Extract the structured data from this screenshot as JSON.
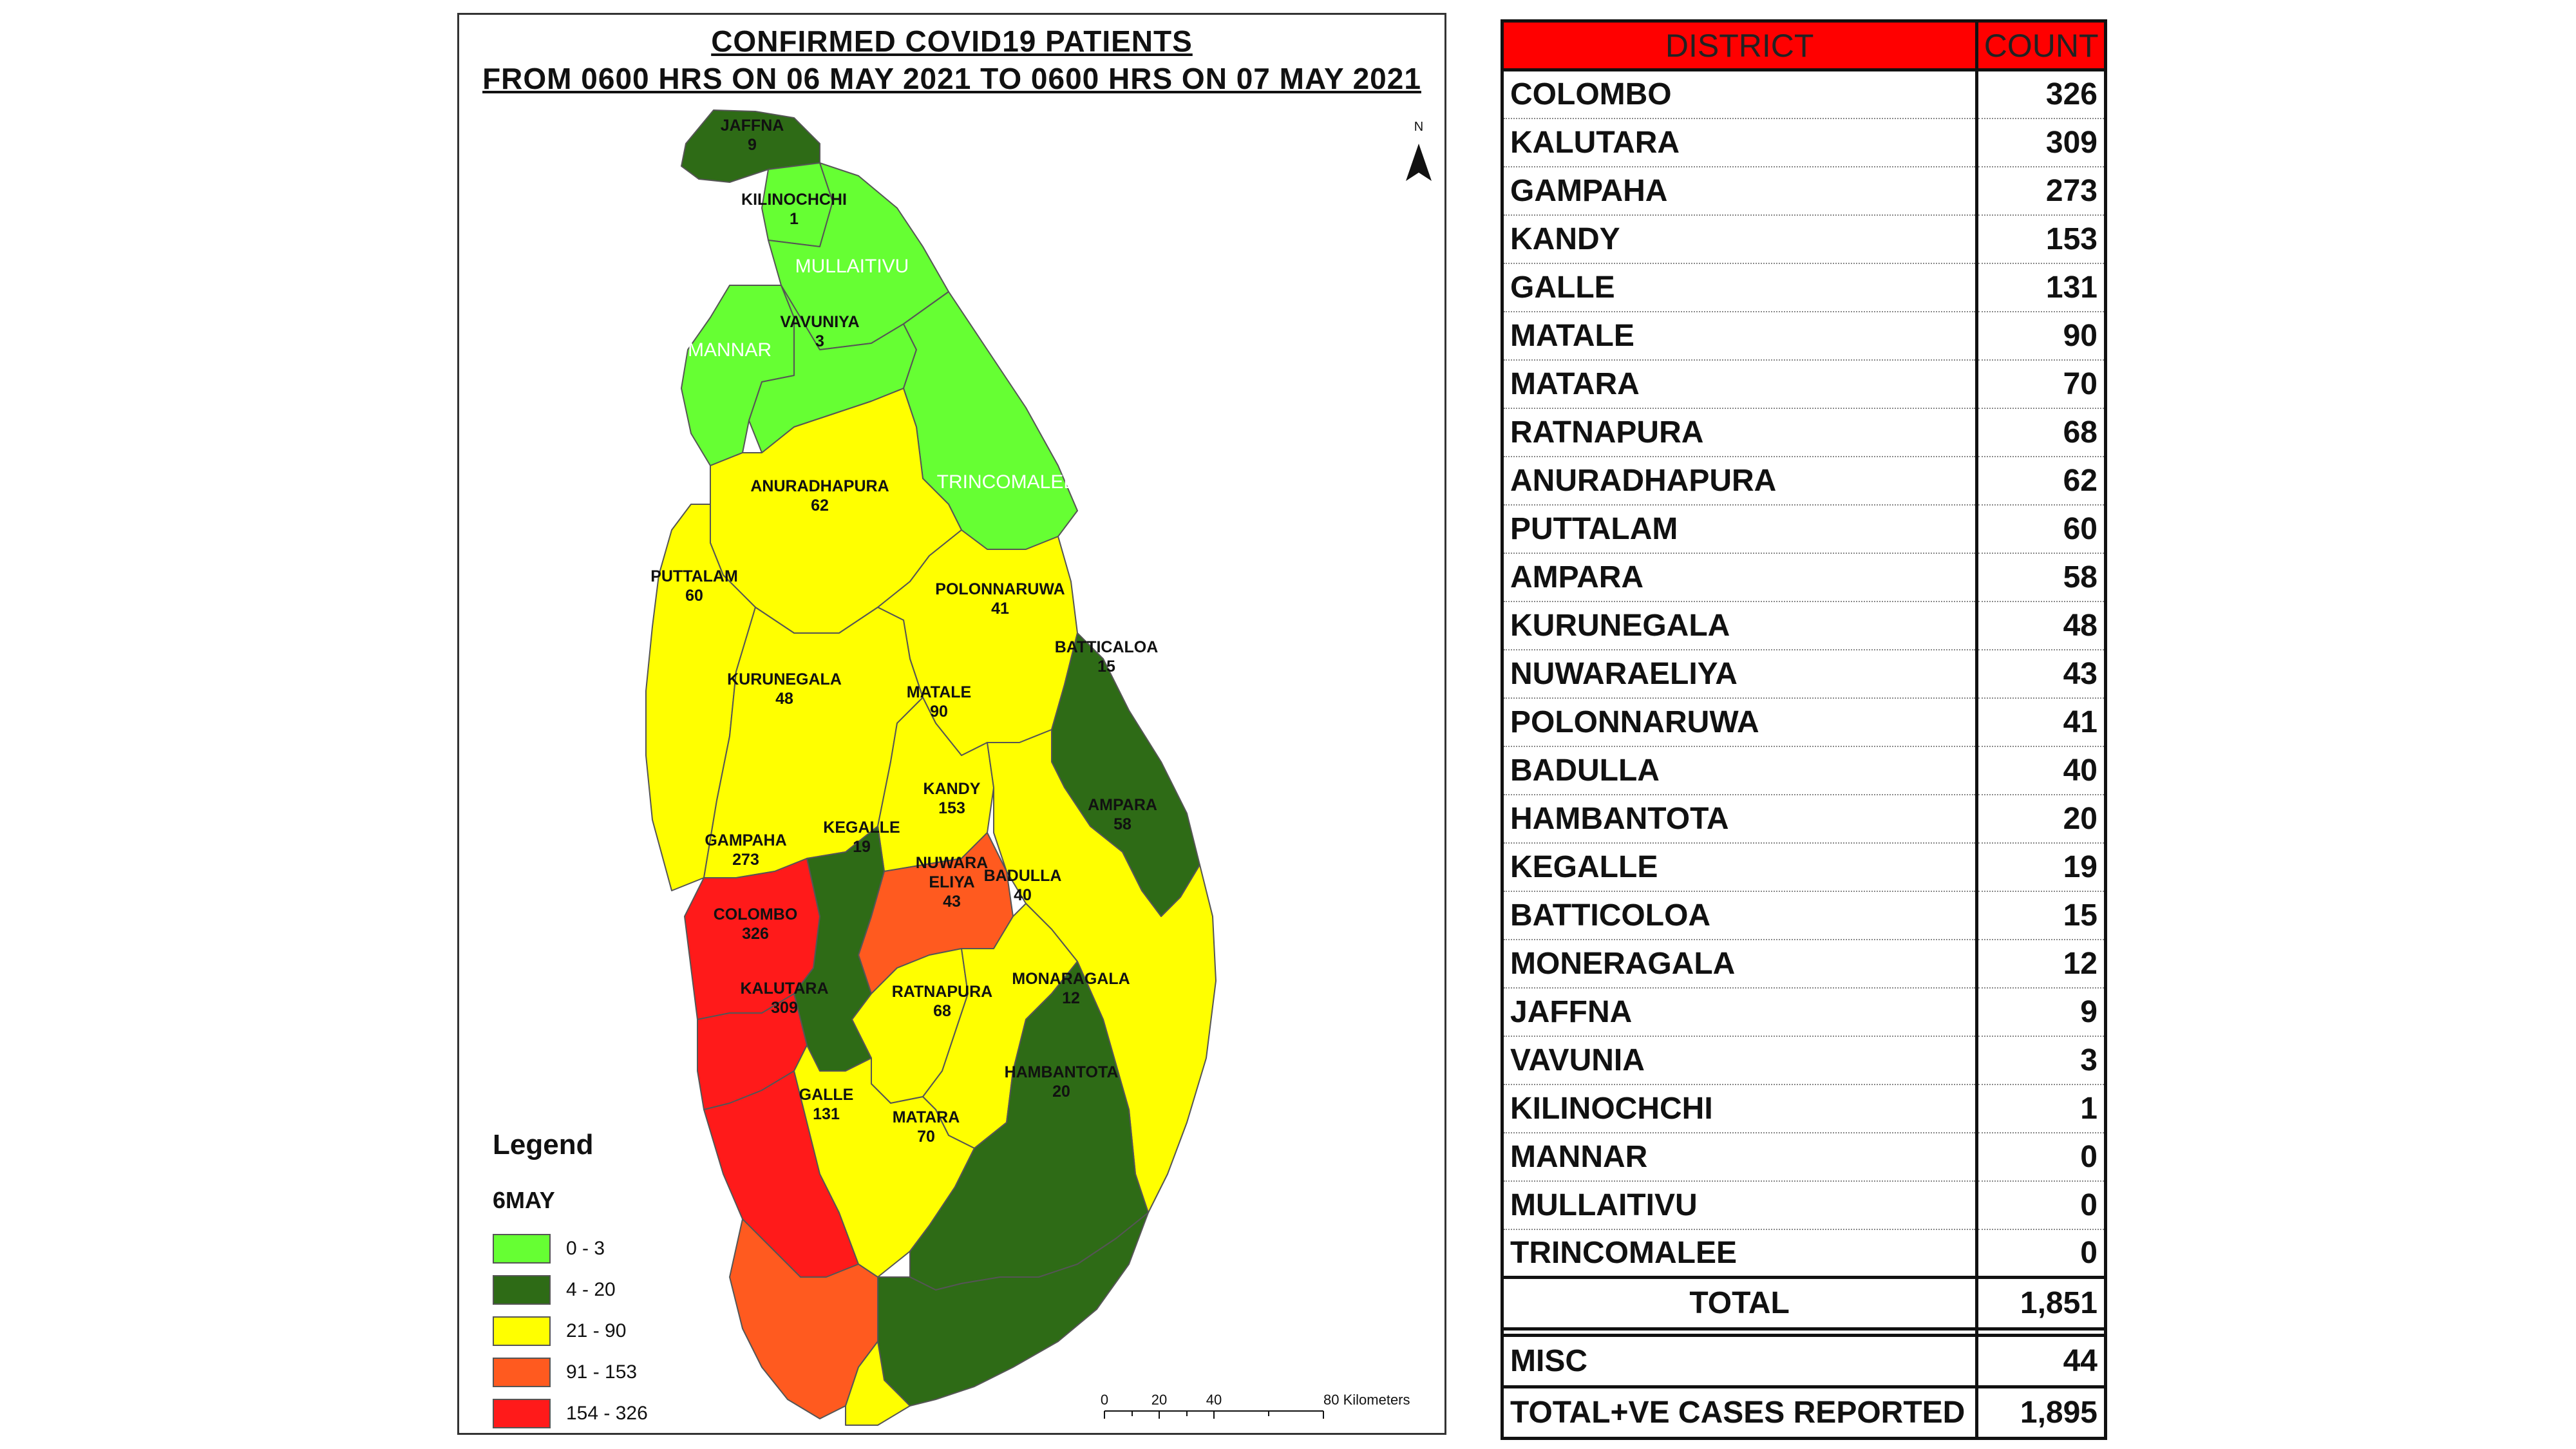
{
  "map": {
    "title_line1": "CONFIRMED COVID19 PATIENTS",
    "title_line2": "FROM 0600 HRS ON 06 MAY 2021 TO 0600 HRS ON 07 MAY 2021",
    "north_label": "N",
    "scale_labels": [
      "0",
      "20",
      "40",
      "80 Kilometers"
    ],
    "districts": [
      {
        "name": "JAFFNA",
        "count": "9",
        "color": "#2e6b16"
      },
      {
        "name": "KILINOCHCHI",
        "count": "1",
        "color": "#66ff33"
      },
      {
        "name": "MULLAITIVU",
        "count": "",
        "color": "#66ff33"
      },
      {
        "name": "VAVUNIYA",
        "count": "3",
        "color": "#66ff33"
      },
      {
        "name": "MANNAR",
        "count": "",
        "color": "#66ff33"
      },
      {
        "name": "TRINCOMALEE",
        "count": "",
        "color": "#66ff33"
      },
      {
        "name": "ANURADHAPURA",
        "count": "62",
        "color": "#ffff00"
      },
      {
        "name": "PUTTALAM",
        "count": "60",
        "color": "#ffff00"
      },
      {
        "name": "POLONNARUWA",
        "count": "41",
        "color": "#ffff00"
      },
      {
        "name": "BATTICALOA",
        "count": "15",
        "color": "#2e6b16"
      },
      {
        "name": "KURUNEGALA",
        "count": "48",
        "color": "#ffff00"
      },
      {
        "name": "MATALE",
        "count": "90",
        "color": "#ffff00"
      },
      {
        "name": "KANDY",
        "count": "153",
        "color": "#ff5a1f"
      },
      {
        "name": "AMPARA",
        "count": "58",
        "color": "#ffff00"
      },
      {
        "name": "GAMPAHA",
        "count": "273",
        "color": "#ff1a1a"
      },
      {
        "name": "KEGALLE",
        "count": "19",
        "color": "#2e6b16"
      },
      {
        "name": "NUWARA ELIYA",
        "count": "43",
        "color": "#ffff00"
      },
      {
        "name": "BADULLA",
        "count": "40",
        "color": "#ffff00"
      },
      {
        "name": "COLOMBO",
        "count": "326",
        "color": "#ff1a1a"
      },
      {
        "name": "KALUTARA",
        "count": "309",
        "color": "#ff1a1a"
      },
      {
        "name": "RATNAPURA",
        "count": "68",
        "color": "#ffff00"
      },
      {
        "name": "MONARAGALA",
        "count": "12",
        "color": "#2e6b16"
      },
      {
        "name": "HAMBANTOTA",
        "count": "20",
        "color": "#2e6b16"
      },
      {
        "name": "GALLE",
        "count": "131",
        "color": "#ff5a1f"
      },
      {
        "name": "MATARA",
        "count": "70",
        "color": "#ffff00"
      }
    ]
  },
  "legend": {
    "title": "Legend",
    "subtitle": "6MAY",
    "items": [
      {
        "label": "0 - 3",
        "color": "#66ff33"
      },
      {
        "label": "4 - 20",
        "color": "#2e6b16"
      },
      {
        "label": "21 - 90",
        "color": "#ffff00"
      },
      {
        "label": "91 - 153",
        "color": "#ff5a1f"
      },
      {
        "label": "154 - 326",
        "color": "#ff1a1a"
      }
    ]
  },
  "table": {
    "header_district": "DISTRICT",
    "header_count": "COUNT",
    "header_color": "#ff0000",
    "rows": [
      {
        "district": "COLOMBO",
        "count": "326"
      },
      {
        "district": "KALUTARA",
        "count": "309"
      },
      {
        "district": "GAMPAHA",
        "count": "273"
      },
      {
        "district": "KANDY",
        "count": "153"
      },
      {
        "district": "GALLE",
        "count": "131"
      },
      {
        "district": "MATALE",
        "count": "90"
      },
      {
        "district": "MATARA",
        "count": "70"
      },
      {
        "district": "RATNAPURA",
        "count": "68"
      },
      {
        "district": "ANURADHAPURA",
        "count": "62"
      },
      {
        "district": "PUTTALAM",
        "count": "60"
      },
      {
        "district": "AMPARA",
        "count": "58"
      },
      {
        "district": "KURUNEGALA",
        "count": "48"
      },
      {
        "district": "NUWARAELIYA",
        "count": "43"
      },
      {
        "district": "POLONNARUWA",
        "count": "41"
      },
      {
        "district": "BADULLA",
        "count": "40"
      },
      {
        "district": "HAMBANTOTA",
        "count": "20"
      },
      {
        "district": "KEGALLE",
        "count": "19"
      },
      {
        "district": "BATTICOLOA",
        "count": "15"
      },
      {
        "district": "MONERAGALA",
        "count": "12"
      },
      {
        "district": "JAFFNA",
        "count": "9"
      },
      {
        "district": "VAVUNIA",
        "count": "3"
      },
      {
        "district": "KILINOCHCHI",
        "count": "1"
      },
      {
        "district": "MANNAR",
        "count": "0"
      },
      {
        "district": "MULLAITIVU",
        "count": "0"
      },
      {
        "district": "TRINCOMALEE",
        "count": "0"
      }
    ],
    "total_label": "TOTAL",
    "total_value": "1,851",
    "misc_label": "MISC",
    "misc_value": "44",
    "reported_label": "TOTAL+VE CASES REPORTED",
    "reported_value": "1,895"
  }
}
